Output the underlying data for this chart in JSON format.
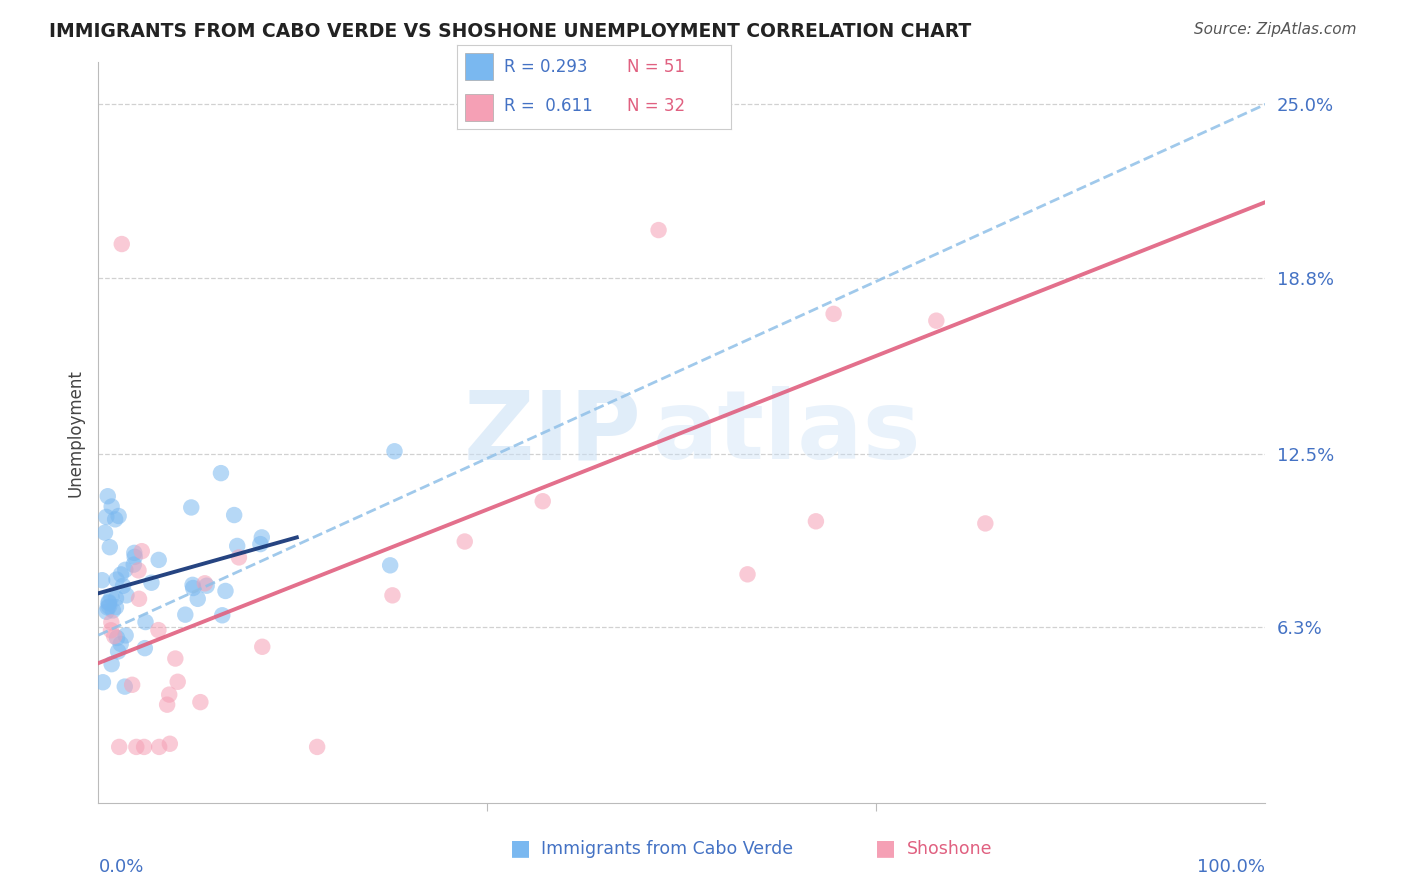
{
  "title": "IMMIGRANTS FROM CABO VERDE VS SHOSHONE UNEMPLOYMENT CORRELATION CHART",
  "source": "Source: ZipAtlas.com",
  "ylabel": "Unemployment",
  "y_tick_vals": [
    6.3,
    12.5,
    18.8,
    25.0
  ],
  "y_tick_labels": [
    "6.3%",
    "12.5%",
    "18.8%",
    "25.0%"
  ],
  "xlim": [
    0,
    100
  ],
  "ylim": [
    0,
    26.5
  ],
  "series1_label": "Immigrants from Cabo Verde",
  "series1_R": "0.293",
  "series1_N": "51",
  "series1_color": "#7ab8f0",
  "series1_trend_color": "#1a3a7a",
  "series2_label": "Shoshone",
  "series2_R": "0.611",
  "series2_N": "32",
  "series2_color": "#f5a0b5",
  "series2_trend_color": "#e06080",
  "dashed_color": "#90c0e8",
  "axis_label_color": "#4472c4",
  "legend_R_color": "#4472c4",
  "legend_N_color": "#e06080",
  "title_color": "#222222",
  "source_color": "#555555",
  "grid_color": "#cccccc",
  "bg_color": "#ffffff",
  "watermark_color": "#c8dff5"
}
